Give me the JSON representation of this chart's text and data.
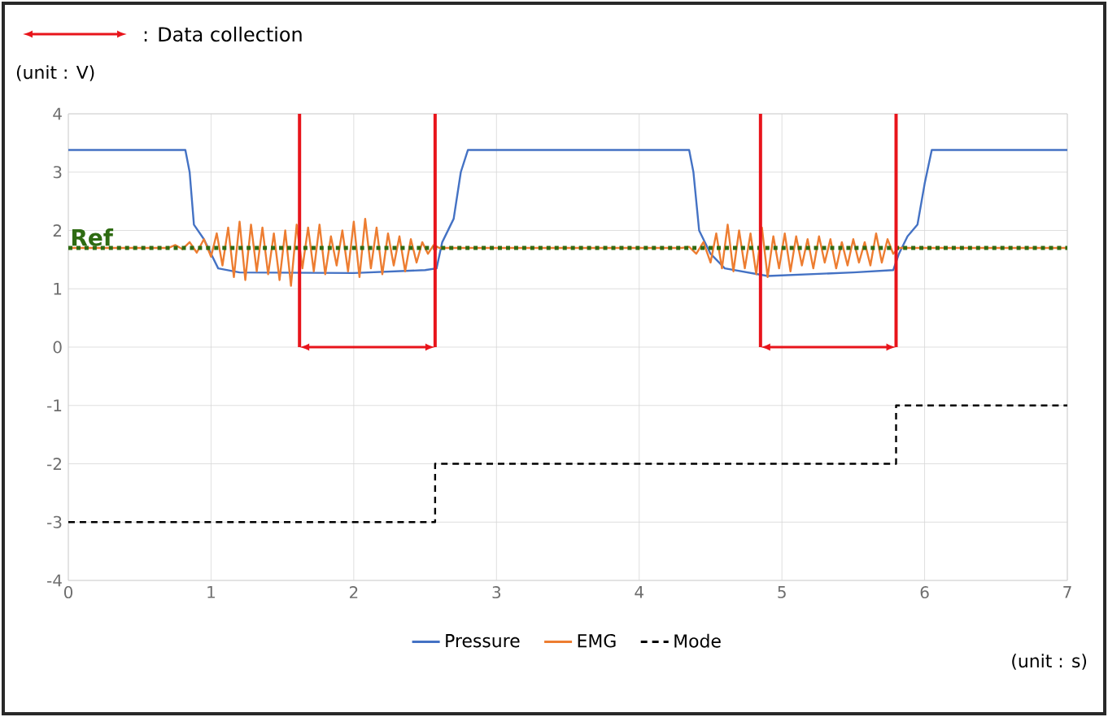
{
  "chart_data": {
    "type": "line",
    "xlabel": "(unit : s)",
    "ylabel": "(unit : V)",
    "annotations": [
      ": Data collection"
    ],
    "xlim": [
      0,
      7
    ],
    "ylim": [
      -4,
      4
    ],
    "xticks": [
      0,
      1,
      2,
      3,
      4,
      5,
      6,
      7
    ],
    "yticks": [
      -4,
      -3,
      -2,
      -1,
      0,
      1,
      2,
      3,
      4
    ],
    "grid": true,
    "legend": "bottom",
    "series": [
      {
        "name": "Pressure",
        "color": "#4472c4",
        "x": [
          0,
          0.82,
          0.85,
          0.88,
          0.95,
          1.0,
          1.05,
          1.2,
          2.0,
          2.5,
          2.58,
          2.62,
          2.7,
          2.75,
          2.8,
          4.35,
          4.38,
          4.42,
          4.5,
          4.6,
          4.9,
          5.5,
          5.78,
          5.82,
          5.88,
          5.95,
          6.0,
          6.05,
          7
        ],
        "values": [
          3.38,
          3.38,
          3.0,
          2.1,
          1.85,
          1.6,
          1.35,
          1.28,
          1.27,
          1.32,
          1.35,
          1.8,
          2.2,
          3.0,
          3.38,
          3.38,
          3.0,
          2.0,
          1.6,
          1.35,
          1.22,
          1.28,
          1.32,
          1.6,
          1.9,
          2.1,
          2.8,
          3.38,
          3.38
        ]
      },
      {
        "name": "EMG",
        "color": "#ed7d31",
        "x": [
          0,
          0.7,
          0.75,
          0.8,
          0.85,
          0.9,
          0.95,
          1.0,
          1.04,
          1.08,
          1.12,
          1.16,
          1.2,
          1.24,
          1.28,
          1.32,
          1.36,
          1.4,
          1.44,
          1.48,
          1.52,
          1.56,
          1.6,
          1.64,
          1.68,
          1.72,
          1.76,
          1.8,
          1.84,
          1.88,
          1.92,
          1.96,
          2.0,
          2.04,
          2.08,
          2.12,
          2.16,
          2.2,
          2.24,
          2.28,
          2.32,
          2.36,
          2.4,
          2.44,
          2.48,
          2.52,
          2.56,
          2.6,
          4.3,
          4.35,
          4.4,
          4.45,
          4.5,
          4.54,
          4.58,
          4.62,
          4.66,
          4.7,
          4.74,
          4.78,
          4.82,
          4.86,
          4.9,
          4.94,
          4.98,
          5.02,
          5.06,
          5.1,
          5.14,
          5.18,
          5.22,
          5.26,
          5.3,
          5.34,
          5.38,
          5.42,
          5.46,
          5.5,
          5.54,
          5.58,
          5.62,
          5.66,
          5.7,
          5.74,
          5.78,
          5.82,
          7.0
        ],
        "values": [
          1.7,
          1.7,
          1.75,
          1.68,
          1.8,
          1.62,
          1.85,
          1.55,
          1.95,
          1.4,
          2.05,
          1.2,
          2.15,
          1.15,
          2.1,
          1.3,
          2.05,
          1.25,
          1.95,
          1.15,
          2.0,
          1.05,
          2.1,
          1.35,
          2.05,
          1.3,
          2.1,
          1.25,
          1.9,
          1.4,
          2.0,
          1.3,
          2.15,
          1.2,
          2.2,
          1.35,
          2.05,
          1.25,
          1.95,
          1.4,
          1.9,
          1.3,
          1.85,
          1.45,
          1.8,
          1.6,
          1.75,
          1.7,
          1.7,
          1.72,
          1.6,
          1.8,
          1.45,
          1.95,
          1.35,
          2.1,
          1.3,
          2.0,
          1.35,
          1.95,
          1.25,
          2.05,
          1.2,
          1.9,
          1.35,
          1.95,
          1.3,
          1.9,
          1.4,
          1.85,
          1.35,
          1.9,
          1.45,
          1.85,
          1.35,
          1.8,
          1.4,
          1.85,
          1.45,
          1.8,
          1.4,
          1.95,
          1.45,
          1.85,
          1.6,
          1.7,
          1.7
        ]
      },
      {
        "name": "Mode",
        "type": "step",
        "color": "#000000",
        "line_style": "dashed",
        "x": [
          0,
          2.57,
          5.8,
          7
        ],
        "values": [
          -3,
          -2,
          -1,
          -1
        ]
      }
    ],
    "ref_lines": [
      {
        "axis": "y",
        "value": 1.7,
        "label": "Ref",
        "color": "#2e6b12",
        "line_style": "dotted"
      },
      {
        "axis": "x",
        "value": 1.62,
        "color": "#e8141b"
      },
      {
        "axis": "x",
        "value": 2.57,
        "color": "#e8141b"
      },
      {
        "axis": "x",
        "value": 4.85,
        "color": "#e8141b"
      },
      {
        "axis": "x",
        "value": 5.8,
        "color": "#e8141b"
      }
    ]
  }
}
